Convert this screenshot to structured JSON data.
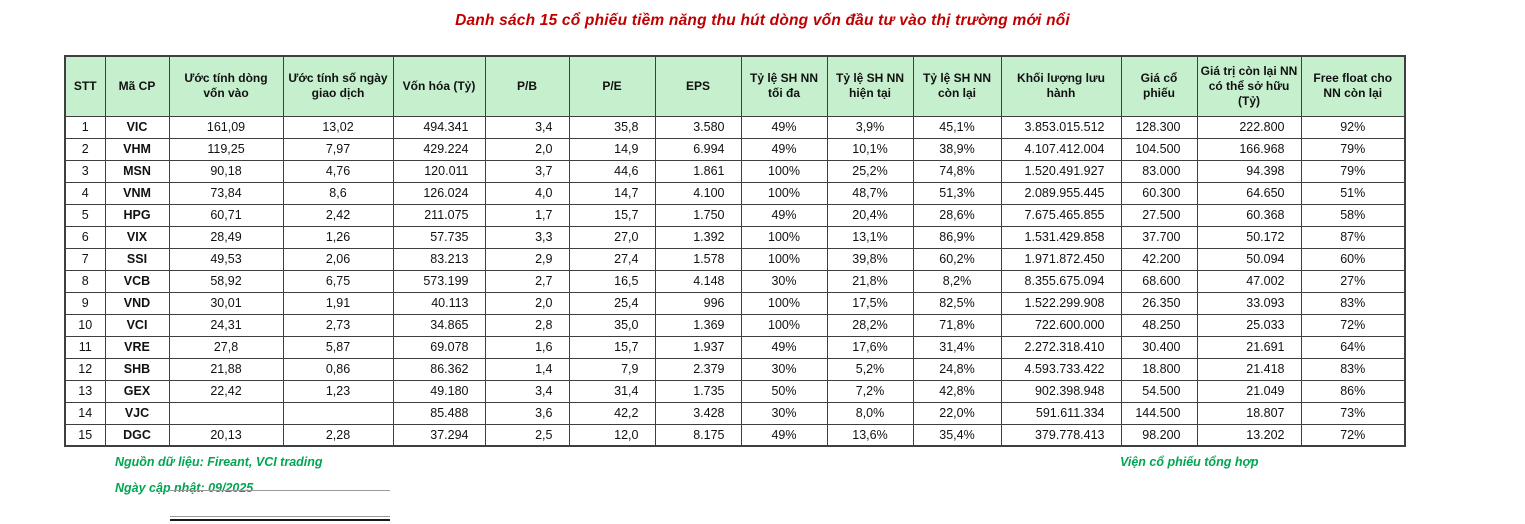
{
  "title": "Danh sách 15 cổ phiếu tiềm năng thu hút dòng vốn đầu tư vào thị trường mới nổi",
  "colors": {
    "title_red": "#C00000",
    "header_bg": "#C6EFCE",
    "footer_green": "#00A651",
    "border": "#3f3f3f"
  },
  "table": {
    "headers": [
      "STT",
      "Mã CP",
      "Ước tính dòng vốn vào",
      "Ước tính số ngày giao dịch",
      "Vốn hóa (Tỷ)",
      "P/B",
      "P/E",
      "EPS",
      "Tỷ lệ SH NN tối đa",
      "Tỷ lệ SH NN hiện tại",
      "Tỷ lệ SH NN còn lại",
      "Khối lượng lưu hành",
      "Giá cổ phiếu",
      "Giá trị còn lại NN có thể sở hữu (Tỷ)",
      "Free float cho NN còn lại"
    ],
    "rows": [
      [
        "1",
        "VIC",
        "161,09",
        "13,02",
        "494.341",
        "3,4",
        "35,8",
        "3.580",
        "49%",
        "3,9%",
        "45,1%",
        "3.853.015.512",
        "128.300",
        "222.800",
        "92%"
      ],
      [
        "2",
        "VHM",
        "119,25",
        "7,97",
        "429.224",
        "2,0",
        "14,9",
        "6.994",
        "49%",
        "10,1%",
        "38,9%",
        "4.107.412.004",
        "104.500",
        "166.968",
        "79%"
      ],
      [
        "3",
        "MSN",
        "90,18",
        "4,76",
        "120.011",
        "3,7",
        "44,6",
        "1.861",
        "100%",
        "25,2%",
        "74,8%",
        "1.520.491.927",
        "83.000",
        "94.398",
        "79%"
      ],
      [
        "4",
        "VNM",
        "73,84",
        "8,6",
        "126.024",
        "4,0",
        "14,7",
        "4.100",
        "100%",
        "48,7%",
        "51,3%",
        "2.089.955.445",
        "60.300",
        "64.650",
        "51%"
      ],
      [
        "5",
        "HPG",
        "60,71",
        "2,42",
        "211.075",
        "1,7",
        "15,7",
        "1.750",
        "49%",
        "20,4%",
        "28,6%",
        "7.675.465.855",
        "27.500",
        "60.368",
        "58%"
      ],
      [
        "6",
        "VIX",
        "28,49",
        "1,26",
        "57.735",
        "3,3",
        "27,0",
        "1.392",
        "100%",
        "13,1%",
        "86,9%",
        "1.531.429.858",
        "37.700",
        "50.172",
        "87%"
      ],
      [
        "7",
        "SSI",
        "49,53",
        "2,06",
        "83.213",
        "2,9",
        "27,4",
        "1.578",
        "100%",
        "39,8%",
        "60,2%",
        "1.971.872.450",
        "42.200",
        "50.094",
        "60%"
      ],
      [
        "8",
        "VCB",
        "58,92",
        "6,75",
        "573.199",
        "2,7",
        "16,5",
        "4.148",
        "30%",
        "21,8%",
        "8,2%",
        "8.355.675.094",
        "68.600",
        "47.002",
        "27%"
      ],
      [
        "9",
        "VND",
        "30,01",
        "1,91",
        "40.113",
        "2,0",
        "25,4",
        "996",
        "100%",
        "17,5%",
        "82,5%",
        "1.522.299.908",
        "26.350",
        "33.093",
        "83%"
      ],
      [
        "10",
        "VCI",
        "24,31",
        "2,73",
        "34.865",
        "2,8",
        "35,0",
        "1.369",
        "100%",
        "28,2%",
        "71,8%",
        "722.600.000",
        "48.250",
        "25.033",
        "72%"
      ],
      [
        "11",
        "VRE",
        "27,8",
        "5,87",
        "69.078",
        "1,6",
        "15,7",
        "1.937",
        "49%",
        "17,6%",
        "31,4%",
        "2.272.318.410",
        "30.400",
        "21.691",
        "64%"
      ],
      [
        "12",
        "SHB",
        "21,88",
        "0,86",
        "86.362",
        "1,4",
        "7,9",
        "2.379",
        "30%",
        "5,2%",
        "24,8%",
        "4.593.733.422",
        "18.800",
        "21.418",
        "83%"
      ],
      [
        "13",
        "GEX",
        "22,42",
        "1,23",
        "49.180",
        "3,4",
        "31,4",
        "1.735",
        "50%",
        "7,2%",
        "42,8%",
        "902.398.948",
        "54.500",
        "21.049",
        "86%"
      ],
      [
        "14",
        "VJC",
        "",
        "",
        "85.488",
        "3,6",
        "42,2",
        "3.428",
        "30%",
        "8,0%",
        "22,0%",
        "591.611.334",
        "144.500",
        "18.807",
        "73%"
      ],
      [
        "15",
        "DGC",
        "20,13",
        "2,28",
        "37.294",
        "2,5",
        "12,0",
        "8.175",
        "49%",
        "13,6%",
        "35,4%",
        "379.778.413",
        "98.200",
        "13.202",
        "72%"
      ]
    ]
  },
  "footer": {
    "source": "Nguồn dữ liệu: Fireant, VCI trading",
    "updated": "Ngày cập nhật: 09/2025",
    "right": "Viện cổ phiếu tổng hợp"
  }
}
